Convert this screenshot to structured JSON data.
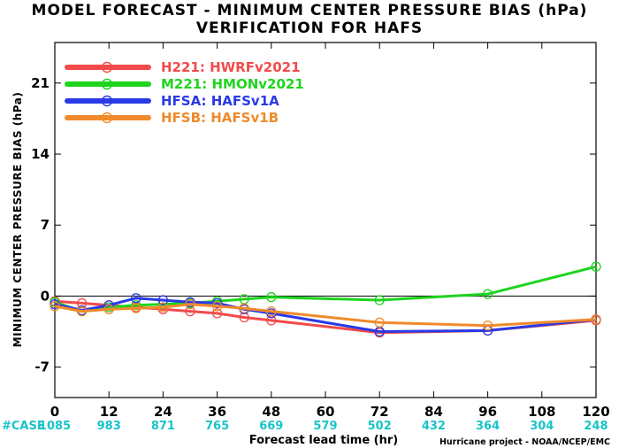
{
  "title_line1": "MODEL FORECAST - MINIMUM CENTER PRESSURE BIAS (hPa)",
  "title_line2": "VERIFICATION FOR HAFS",
  "credit": "Hurricane project - NOAA/NCEP/EMC",
  "cases_label": "#CASE",
  "colors": {
    "H221": "#f24a4a",
    "M221": "#1ed41e",
    "HFSA": "#2a3ae6",
    "HFSB": "#f08a2a",
    "cases": "#19c3c8"
  },
  "chart_data": {
    "type": "line",
    "title": "MODEL FORECAST - MINIMUM CENTER PRESSURE BIAS (hPa)",
    "subtitle": "VERIFICATION FOR HAFS",
    "xlabel": "Forecast lead time (hr)",
    "ylabel": "MINIMUM CENTER PRESSURE BIAS (hPa)",
    "xlim": [
      0,
      120
    ],
    "ylim": [
      -10,
      25
    ],
    "xticks": [
      0,
      12,
      24,
      36,
      48,
      60,
      72,
      84,
      96,
      108,
      120
    ],
    "yticks": [
      -7,
      0,
      7,
      14,
      21
    ],
    "zero_line": 0,
    "grid": false,
    "legend_position": "top-left",
    "cases": [
      {
        "x": 0,
        "n": "1085"
      },
      {
        "x": 12,
        "n": "983"
      },
      {
        "x": 24,
        "n": "871"
      },
      {
        "x": 36,
        "n": "765"
      },
      {
        "x": 48,
        "n": "669"
      },
      {
        "x": 60,
        "n": "579"
      },
      {
        "x": 72,
        "n": "502"
      },
      {
        "x": 84,
        "n": "432"
      },
      {
        "x": 96,
        "n": "364"
      },
      {
        "x": 108,
        "n": "304"
      },
      {
        "x": 120,
        "n": "248"
      }
    ],
    "series": [
      {
        "id": "H221",
        "name": "H221: HWRFv2021",
        "x": [
          0,
          6,
          12,
          18,
          24,
          30,
          36,
          42,
          48,
          72,
          96,
          120
        ],
        "y": [
          -0.5,
          -0.7,
          -0.9,
          -1.1,
          -1.3,
          -1.5,
          -1.7,
          -2.1,
          -2.4,
          -3.6,
          -3.4,
          -2.4
        ]
      },
      {
        "id": "M221",
        "name": "M221: HMONv2021",
        "x": [
          0,
          6,
          12,
          18,
          24,
          30,
          36,
          42,
          48,
          72,
          96,
          120
        ],
        "y": [
          -0.6,
          -1.5,
          -1.1,
          -0.9,
          -0.8,
          -0.7,
          -0.5,
          -0.3,
          -0.1,
          -0.4,
          0.2,
          2.9
        ]
      },
      {
        "id": "HFSA",
        "name": "HFSA: HAFSv1A",
        "x": [
          0,
          6,
          12,
          18,
          24,
          30,
          36,
          42,
          48,
          72,
          96,
          120
        ],
        "y": [
          -0.8,
          -1.4,
          -0.9,
          -0.2,
          -0.4,
          -0.6,
          -0.7,
          -1.3,
          -1.7,
          -3.5,
          -3.4,
          -2.3
        ]
      },
      {
        "id": "HFSB",
        "name": "HFSB: HAFSv1B",
        "x": [
          0,
          6,
          12,
          18,
          24,
          30,
          36,
          42,
          48,
          72,
          96,
          120
        ],
        "y": [
          -1.0,
          -1.5,
          -1.3,
          -1.2,
          -1.1,
          -0.8,
          -1.0,
          -1.2,
          -1.5,
          -2.6,
          -2.9,
          -2.3
        ]
      }
    ]
  }
}
